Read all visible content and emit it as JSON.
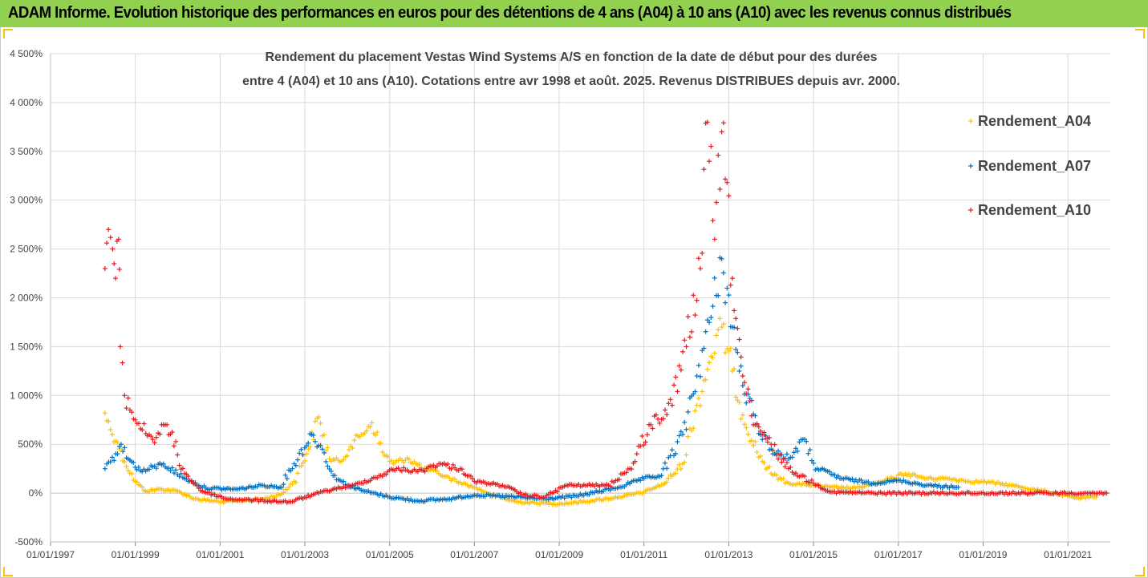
{
  "header": {
    "title": "ADAM Informe. Evolution historique des performances en euros pour des détentions de 4 ans (A04) à 10 ans (A10) avec les revenus connus distribués"
  },
  "colors": {
    "header_bg": "#92d050",
    "accent_corner": "#ffc000"
  },
  "chart_data": {
    "type": "scatter",
    "title_line1": "Rendement du placement Vestas Wind Systems A/S en fonction de la date de début pour des durées",
    "title_line2": "entre 4 (A04) et 10 ans (A10). Cotations entre avr 1998 et août. 2025. Revenus DISTRIBUES depuis avr. 2000.",
    "xlabel": "",
    "ylabel": "",
    "x_ticks": [
      "01/01/1997",
      "01/01/1999",
      "01/01/2001",
      "01/01/2003",
      "01/01/2005",
      "01/01/2007",
      "01/01/2009",
      "01/01/2011",
      "01/01/2013",
      "01/01/2015",
      "01/01/2017",
      "01/01/2019",
      "01/01/2021"
    ],
    "xlim": [
      "1997-01-01",
      "2022-01-01"
    ],
    "y_ticks": [
      "-500%",
      "0%",
      "500%",
      "1 000%",
      "1 500%",
      "2 000%",
      "2 500%",
      "3 000%",
      "3 500%",
      "4 000%",
      "4 500%"
    ],
    "ylim": [
      -500,
      4500
    ],
    "grid": true,
    "legend_position": "right",
    "marker": "+",
    "series": [
      {
        "name": "Rendement_A04",
        "color": "#ffc000",
        "points": [
          [
            "1998-04-15",
            820
          ],
          [
            "1998-06-01",
            650
          ],
          [
            "1998-08-01",
            520
          ],
          [
            "1998-10-01",
            320
          ],
          [
            "1999-01-01",
            120
          ],
          [
            "1999-04-01",
            20
          ],
          [
            "1999-08-01",
            40
          ],
          [
            "2000-01-01",
            20
          ],
          [
            "2000-06-01",
            -60
          ],
          [
            "2001-01-01",
            -90
          ],
          [
            "2001-06-01",
            -80
          ],
          [
            "2002-01-01",
            -60
          ],
          [
            "2002-06-01",
            -20
          ],
          [
            "2002-10-01",
            120
          ],
          [
            "2003-02-01",
            450
          ],
          [
            "2003-05-01",
            780
          ],
          [
            "2003-08-01",
            350
          ],
          [
            "2003-11-01",
            320
          ],
          [
            "2004-02-01",
            480
          ],
          [
            "2004-05-01",
            600
          ],
          [
            "2004-08-01",
            720
          ],
          [
            "2004-11-01",
            420
          ],
          [
            "2005-02-01",
            300
          ],
          [
            "2005-06-01",
            360
          ],
          [
            "2005-10-01",
            260
          ],
          [
            "2006-03-01",
            200
          ],
          [
            "2006-08-01",
            120
          ],
          [
            "2007-01-01",
            60
          ],
          [
            "2007-06-01",
            -20
          ],
          [
            "2008-01-01",
            -90
          ],
          [
            "2009-01-01",
            -110
          ],
          [
            "2009-10-01",
            -80
          ],
          [
            "2010-06-01",
            -40
          ],
          [
            "2011-01-01",
            10
          ],
          [
            "2011-07-01",
            100
          ],
          [
            "2011-12-01",
            300
          ],
          [
            "2012-04-01",
            900
          ],
          [
            "2012-08-01",
            1400
          ],
          [
            "2012-11-01",
            1700
          ],
          [
            "2013-02-01",
            1250
          ],
          [
            "2013-05-01",
            800
          ],
          [
            "2013-09-01",
            420
          ],
          [
            "2014-01-01",
            200
          ],
          [
            "2014-06-01",
            100
          ],
          [
            "2015-01-01",
            80
          ],
          [
            "2015-06-01",
            60
          ],
          [
            "2016-01-01",
            50
          ],
          [
            "2016-09-01",
            120
          ],
          [
            "2017-03-01",
            200
          ],
          [
            "2017-09-01",
            150
          ],
          [
            "2018-03-01",
            150
          ],
          [
            "2018-09-01",
            120
          ],
          [
            "2019-03-01",
            110
          ],
          [
            "2019-09-01",
            80
          ],
          [
            "2020-03-01",
            40
          ],
          [
            "2020-09-01",
            0
          ],
          [
            "2021-03-01",
            -50
          ],
          [
            "2021-09-01",
            -40
          ]
        ]
      },
      {
        "name": "Rendement_A07",
        "color": "#0070c0",
        "points": [
          [
            "1998-04-15",
            250
          ],
          [
            "1998-06-01",
            320
          ],
          [
            "1998-09-01",
            500
          ],
          [
            "1998-11-01",
            350
          ],
          [
            "1999-03-01",
            220
          ],
          [
            "1999-09-01",
            300
          ],
          [
            "2000-03-01",
            150
          ],
          [
            "2000-09-01",
            50
          ],
          [
            "2001-06-01",
            40
          ],
          [
            "2002-01-01",
            80
          ],
          [
            "2002-06-01",
            60
          ],
          [
            "2002-10-01",
            300
          ],
          [
            "2003-03-01",
            600
          ],
          [
            "2003-06-01",
            450
          ],
          [
            "2003-09-01",
            180
          ],
          [
            "2004-01-01",
            80
          ],
          [
            "2004-06-01",
            20
          ],
          [
            "2005-01-01",
            -40
          ],
          [
            "2005-09-01",
            -80
          ],
          [
            "2006-06-01",
            -60
          ],
          [
            "2007-01-01",
            -20
          ],
          [
            "2008-01-01",
            -40
          ],
          [
            "2008-09-01",
            -60
          ],
          [
            "2009-06-01",
            -30
          ],
          [
            "2010-06-01",
            60
          ],
          [
            "2011-01-01",
            150
          ],
          [
            "2011-06-01",
            180
          ],
          [
            "2011-12-01",
            600
          ],
          [
            "2012-04-01",
            1200
          ],
          [
            "2012-08-01",
            1800
          ],
          [
            "2012-11-01",
            2400
          ],
          [
            "2013-02-01",
            1700
          ],
          [
            "2013-05-01",
            1100
          ],
          [
            "2013-09-01",
            700
          ],
          [
            "2014-01-01",
            450
          ],
          [
            "2014-06-01",
            350
          ],
          [
            "2014-10-01",
            550
          ],
          [
            "2015-02-01",
            250
          ],
          [
            "2015-09-01",
            150
          ],
          [
            "2016-06-01",
            100
          ],
          [
            "2017-01-01",
            130
          ],
          [
            "2017-09-01",
            80
          ],
          [
            "2018-06-01",
            60
          ]
        ]
      },
      {
        "name": "Rendement_A10",
        "color": "#e8191e",
        "points": [
          [
            "1998-04-15",
            2300
          ],
          [
            "1998-05-15",
            2700
          ],
          [
            "1998-06-20",
            2500
          ],
          [
            "1998-07-15",
            2200
          ],
          [
            "1998-08-10",
            2600
          ],
          [
            "1998-08-25",
            1500
          ],
          [
            "1998-10-01",
            1000
          ],
          [
            "1999-01-01",
            750
          ],
          [
            "1999-06-01",
            550
          ],
          [
            "1999-10-01",
            700
          ],
          [
            "2000-03-01",
            200
          ],
          [
            "2000-08-01",
            20
          ],
          [
            "2001-03-01",
            -60
          ],
          [
            "2002-03-01",
            -80
          ],
          [
            "2002-09-01",
            -90
          ],
          [
            "2003-03-01",
            -20
          ],
          [
            "2003-09-01",
            40
          ],
          [
            "2004-03-01",
            80
          ],
          [
            "2004-09-01",
            160
          ],
          [
            "2005-03-01",
            250
          ],
          [
            "2005-09-01",
            220
          ],
          [
            "2006-03-01",
            300
          ],
          [
            "2006-09-01",
            250
          ],
          [
            "2007-01-01",
            120
          ],
          [
            "2007-09-01",
            80
          ],
          [
            "2008-03-01",
            -20
          ],
          [
            "2008-09-01",
            -40
          ],
          [
            "2009-03-01",
            80
          ],
          [
            "2009-09-01",
            80
          ],
          [
            "2010-03-01",
            80
          ],
          [
            "2010-09-01",
            250
          ],
          [
            "2011-03-01",
            700
          ],
          [
            "2011-09-01",
            900
          ],
          [
            "2012-01-01",
            1500
          ],
          [
            "2012-05-01",
            2300
          ],
          [
            "2012-07-01",
            3800
          ],
          [
            "2012-09-01",
            2600
          ],
          [
            "2012-11-01",
            3700
          ],
          [
            "2013-02-01",
            2200
          ],
          [
            "2013-05-01",
            1200
          ],
          [
            "2013-08-01",
            700
          ],
          [
            "2014-01-01",
            500
          ],
          [
            "2014-06-01",
            250
          ],
          [
            "2015-01-01",
            100
          ],
          [
            "2015-06-01",
            10
          ],
          [
            "2016-06-01",
            0
          ],
          [
            "2018-01-01",
            0
          ],
          [
            "2020-01-01",
            0
          ],
          [
            "2021-12-01",
            0
          ]
        ]
      }
    ]
  }
}
